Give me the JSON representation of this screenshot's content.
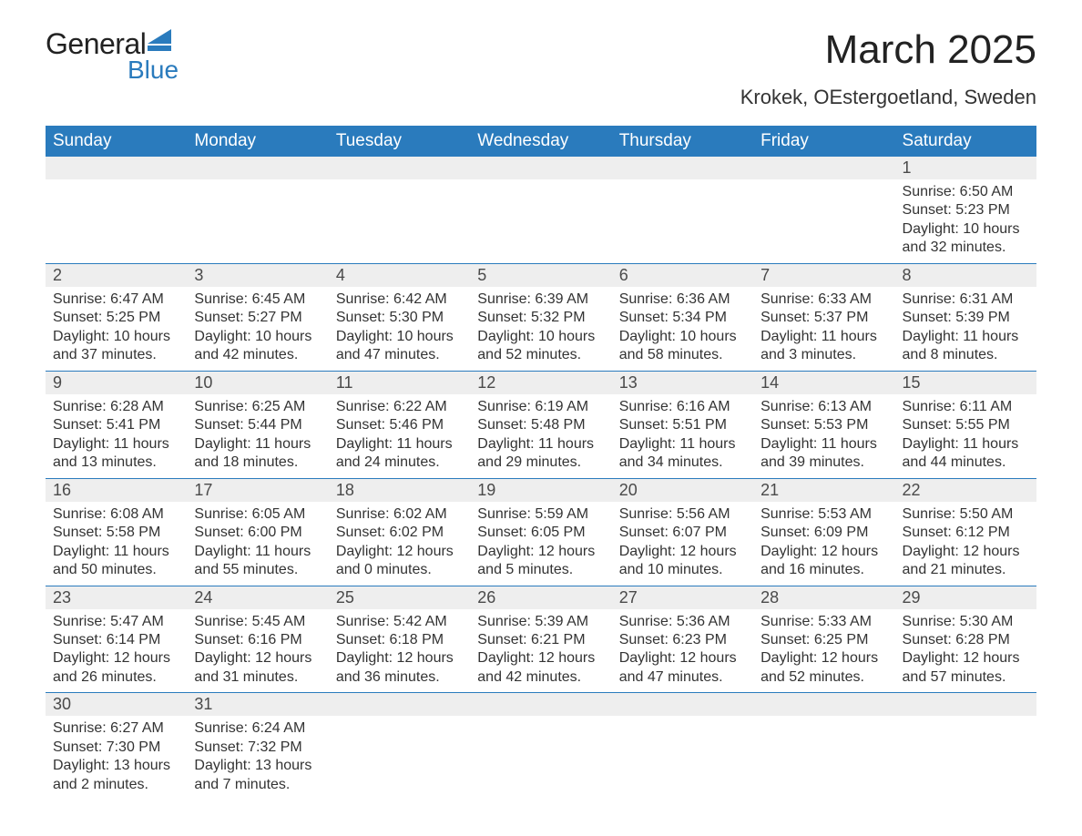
{
  "brand": {
    "top": "General",
    "bottom": "Blue",
    "icon_color": "#2a7bbd",
    "text_top_color": "#222222",
    "text_bottom_color": "#2a7bbd"
  },
  "title": "March 2025",
  "location": "Krokek, OEstergoetland, Sweden",
  "colors": {
    "header_bg": "#2a7bbd",
    "header_text": "#ffffff",
    "daynum_bg": "#eeeeee",
    "border": "#2a7bbd",
    "body_text": "#333333"
  },
  "day_headers": [
    "Sunday",
    "Monday",
    "Tuesday",
    "Wednesday",
    "Thursday",
    "Friday",
    "Saturday"
  ],
  "weeks": [
    [
      null,
      null,
      null,
      null,
      null,
      null,
      {
        "n": "1",
        "sunrise": "Sunrise: 6:50 AM",
        "sunset": "Sunset: 5:23 PM",
        "dl1": "Daylight: 10 hours",
        "dl2": "and 32 minutes."
      }
    ],
    [
      {
        "n": "2",
        "sunrise": "Sunrise: 6:47 AM",
        "sunset": "Sunset: 5:25 PM",
        "dl1": "Daylight: 10 hours",
        "dl2": "and 37 minutes."
      },
      {
        "n": "3",
        "sunrise": "Sunrise: 6:45 AM",
        "sunset": "Sunset: 5:27 PM",
        "dl1": "Daylight: 10 hours",
        "dl2": "and 42 minutes."
      },
      {
        "n": "4",
        "sunrise": "Sunrise: 6:42 AM",
        "sunset": "Sunset: 5:30 PM",
        "dl1": "Daylight: 10 hours",
        "dl2": "and 47 minutes."
      },
      {
        "n": "5",
        "sunrise": "Sunrise: 6:39 AM",
        "sunset": "Sunset: 5:32 PM",
        "dl1": "Daylight: 10 hours",
        "dl2": "and 52 minutes."
      },
      {
        "n": "6",
        "sunrise": "Sunrise: 6:36 AM",
        "sunset": "Sunset: 5:34 PM",
        "dl1": "Daylight: 10 hours",
        "dl2": "and 58 minutes."
      },
      {
        "n": "7",
        "sunrise": "Sunrise: 6:33 AM",
        "sunset": "Sunset: 5:37 PM",
        "dl1": "Daylight: 11 hours",
        "dl2": "and 3 minutes."
      },
      {
        "n": "8",
        "sunrise": "Sunrise: 6:31 AM",
        "sunset": "Sunset: 5:39 PM",
        "dl1": "Daylight: 11 hours",
        "dl2": "and 8 minutes."
      }
    ],
    [
      {
        "n": "9",
        "sunrise": "Sunrise: 6:28 AM",
        "sunset": "Sunset: 5:41 PM",
        "dl1": "Daylight: 11 hours",
        "dl2": "and 13 minutes."
      },
      {
        "n": "10",
        "sunrise": "Sunrise: 6:25 AM",
        "sunset": "Sunset: 5:44 PM",
        "dl1": "Daylight: 11 hours",
        "dl2": "and 18 minutes."
      },
      {
        "n": "11",
        "sunrise": "Sunrise: 6:22 AM",
        "sunset": "Sunset: 5:46 PM",
        "dl1": "Daylight: 11 hours",
        "dl2": "and 24 minutes."
      },
      {
        "n": "12",
        "sunrise": "Sunrise: 6:19 AM",
        "sunset": "Sunset: 5:48 PM",
        "dl1": "Daylight: 11 hours",
        "dl2": "and 29 minutes."
      },
      {
        "n": "13",
        "sunrise": "Sunrise: 6:16 AM",
        "sunset": "Sunset: 5:51 PM",
        "dl1": "Daylight: 11 hours",
        "dl2": "and 34 minutes."
      },
      {
        "n": "14",
        "sunrise": "Sunrise: 6:13 AM",
        "sunset": "Sunset: 5:53 PM",
        "dl1": "Daylight: 11 hours",
        "dl2": "and 39 minutes."
      },
      {
        "n": "15",
        "sunrise": "Sunrise: 6:11 AM",
        "sunset": "Sunset: 5:55 PM",
        "dl1": "Daylight: 11 hours",
        "dl2": "and 44 minutes."
      }
    ],
    [
      {
        "n": "16",
        "sunrise": "Sunrise: 6:08 AM",
        "sunset": "Sunset: 5:58 PM",
        "dl1": "Daylight: 11 hours",
        "dl2": "and 50 minutes."
      },
      {
        "n": "17",
        "sunrise": "Sunrise: 6:05 AM",
        "sunset": "Sunset: 6:00 PM",
        "dl1": "Daylight: 11 hours",
        "dl2": "and 55 minutes."
      },
      {
        "n": "18",
        "sunrise": "Sunrise: 6:02 AM",
        "sunset": "Sunset: 6:02 PM",
        "dl1": "Daylight: 12 hours",
        "dl2": "and 0 minutes."
      },
      {
        "n": "19",
        "sunrise": "Sunrise: 5:59 AM",
        "sunset": "Sunset: 6:05 PM",
        "dl1": "Daylight: 12 hours",
        "dl2": "and 5 minutes."
      },
      {
        "n": "20",
        "sunrise": "Sunrise: 5:56 AM",
        "sunset": "Sunset: 6:07 PM",
        "dl1": "Daylight: 12 hours",
        "dl2": "and 10 minutes."
      },
      {
        "n": "21",
        "sunrise": "Sunrise: 5:53 AM",
        "sunset": "Sunset: 6:09 PM",
        "dl1": "Daylight: 12 hours",
        "dl2": "and 16 minutes."
      },
      {
        "n": "22",
        "sunrise": "Sunrise: 5:50 AM",
        "sunset": "Sunset: 6:12 PM",
        "dl1": "Daylight: 12 hours",
        "dl2": "and 21 minutes."
      }
    ],
    [
      {
        "n": "23",
        "sunrise": "Sunrise: 5:47 AM",
        "sunset": "Sunset: 6:14 PM",
        "dl1": "Daylight: 12 hours",
        "dl2": "and 26 minutes."
      },
      {
        "n": "24",
        "sunrise": "Sunrise: 5:45 AM",
        "sunset": "Sunset: 6:16 PM",
        "dl1": "Daylight: 12 hours",
        "dl2": "and 31 minutes."
      },
      {
        "n": "25",
        "sunrise": "Sunrise: 5:42 AM",
        "sunset": "Sunset: 6:18 PM",
        "dl1": "Daylight: 12 hours",
        "dl2": "and 36 minutes."
      },
      {
        "n": "26",
        "sunrise": "Sunrise: 5:39 AM",
        "sunset": "Sunset: 6:21 PM",
        "dl1": "Daylight: 12 hours",
        "dl2": "and 42 minutes."
      },
      {
        "n": "27",
        "sunrise": "Sunrise: 5:36 AM",
        "sunset": "Sunset: 6:23 PM",
        "dl1": "Daylight: 12 hours",
        "dl2": "and 47 minutes."
      },
      {
        "n": "28",
        "sunrise": "Sunrise: 5:33 AM",
        "sunset": "Sunset: 6:25 PM",
        "dl1": "Daylight: 12 hours",
        "dl2": "and 52 minutes."
      },
      {
        "n": "29",
        "sunrise": "Sunrise: 5:30 AM",
        "sunset": "Sunset: 6:28 PM",
        "dl1": "Daylight: 12 hours",
        "dl2": "and 57 minutes."
      }
    ],
    [
      {
        "n": "30",
        "sunrise": "Sunrise: 6:27 AM",
        "sunset": "Sunset: 7:30 PM",
        "dl1": "Daylight: 13 hours",
        "dl2": "and 2 minutes."
      },
      {
        "n": "31",
        "sunrise": "Sunrise: 6:24 AM",
        "sunset": "Sunset: 7:32 PM",
        "dl1": "Daylight: 13 hours",
        "dl2": "and 7 minutes."
      },
      null,
      null,
      null,
      null,
      null
    ]
  ]
}
